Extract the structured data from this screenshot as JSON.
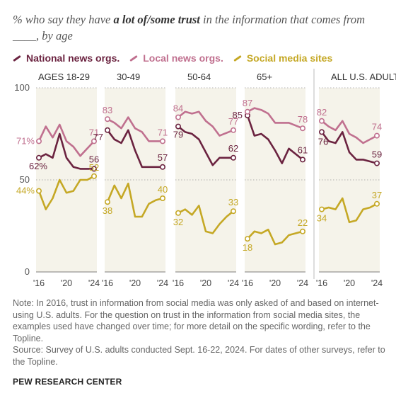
{
  "header": {
    "subtitle_pre": "% who say they have ",
    "subtitle_bold": "a lot of/some trust",
    "subtitle_post": " in the information that comes from ____, by age"
  },
  "colors": {
    "national": "#6b2340",
    "local": "#c0708f",
    "social": "#c5a825"
  },
  "chart_data": {
    "type": "line",
    "title": "",
    "ylim": [
      0,
      100
    ],
    "y_ticks": [
      "0",
      "50",
      "100"
    ],
    "x_ticks": [
      "'16",
      "'20",
      "'24"
    ],
    "x_range": [
      2016,
      2024
    ],
    "legend": [
      {
        "key": "national",
        "label": "National news orgs."
      },
      {
        "key": "local",
        "label": "Local news orgs."
      },
      {
        "key": "social",
        "label": "Social media sites"
      }
    ],
    "panels": [
      {
        "label": "AGES 18-29",
        "series": [
          {
            "key": "national",
            "x": [
              2016,
              2017,
              2018,
              2019,
              2020,
              2021,
              2022,
              2024
            ],
            "y": [
              62,
              64,
              62,
              75,
              62,
              57,
              56,
              56
            ],
            "start_label": "62%",
            "end_label": "56"
          },
          {
            "key": "local",
            "x": [
              2016,
              2017,
              2018,
              2019,
              2020,
              2021,
              2022,
              2024
            ],
            "y": [
              71,
              79,
              73,
              80,
              71,
              68,
              63,
              71
            ],
            "start_label": "71%",
            "end_label": "71"
          },
          {
            "key": "social",
            "x": [
              2016,
              2017,
              2018,
              2019,
              2020,
              2021,
              2022,
              2023,
              2024
            ],
            "y": [
              44,
              34,
              40,
              50,
              43,
              44,
              50,
              50,
              52
            ],
            "start_label": "44%",
            "end_label": "52"
          }
        ]
      },
      {
        "label": "30-49",
        "series": [
          {
            "key": "national",
            "x": [
              2016,
              2017,
              2018,
              2019,
              2020,
              2021,
              2022,
              2024
            ],
            "y": [
              77,
              72,
              70,
              77,
              66,
              57,
              57,
              57
            ],
            "start_label": "77",
            "end_label": "57"
          },
          {
            "key": "local",
            "x": [
              2016,
              2017,
              2018,
              2019,
              2020,
              2021,
              2022,
              2024
            ],
            "y": [
              83,
              81,
              78,
              84,
              78,
              76,
              71,
              71
            ],
            "start_label": "83",
            "end_label": "71"
          },
          {
            "key": "social",
            "x": [
              2016,
              2017,
              2018,
              2019,
              2020,
              2021,
              2022,
              2023,
              2024
            ],
            "y": [
              38,
              47,
              40,
              48,
              30,
              30,
              37,
              39,
              40
            ],
            "start_label": "38",
            "end_label": "40"
          }
        ]
      },
      {
        "label": "50-64",
        "series": [
          {
            "key": "national",
            "x": [
              2016,
              2017,
              2018,
              2019,
              2020,
              2021,
              2022,
              2024
            ],
            "y": [
              79,
              76,
              75,
              72,
              65,
              58,
              62,
              62
            ],
            "start_label": "79",
            "end_label": "62"
          },
          {
            "key": "local",
            "x": [
              2016,
              2017,
              2018,
              2019,
              2020,
              2021,
              2022,
              2024
            ],
            "y": [
              84,
              87,
              86,
              87,
              82,
              79,
              74,
              77
            ],
            "start_label": "84",
            "end_label": "77"
          },
          {
            "key": "social",
            "x": [
              2016,
              2017,
              2018,
              2019,
              2020,
              2021,
              2022,
              2023,
              2024
            ],
            "y": [
              32,
              34,
              31,
              36,
              22,
              21,
              26,
              30,
              33
            ],
            "start_label": "32",
            "end_label": "33"
          }
        ]
      },
      {
        "label": "65+",
        "series": [
          {
            "key": "national",
            "x": [
              2016,
              2017,
              2018,
              2019,
              2020,
              2021,
              2022,
              2024
            ],
            "y": [
              85,
              74,
              75,
              72,
              66,
              59,
              67,
              61
            ],
            "start_label": "85",
            "end_label": "61"
          },
          {
            "key": "local",
            "x": [
              2016,
              2017,
              2018,
              2019,
              2020,
              2021,
              2022,
              2024
            ],
            "y": [
              87,
              89,
              88,
              86,
              81,
              81,
              81,
              78
            ],
            "start_label": "87",
            "end_label": "78"
          },
          {
            "key": "social",
            "x": [
              2016,
              2017,
              2018,
              2019,
              2020,
              2021,
              2022,
              2023,
              2024
            ],
            "y": [
              18,
              22,
              21,
              23,
              15,
              16,
              20,
              21,
              22
            ],
            "start_label": "18",
            "end_label": "22"
          }
        ]
      },
      {
        "label": "ALL U.S. ADULTS",
        "series": [
          {
            "key": "national",
            "x": [
              2016,
              2017,
              2018,
              2019,
              2020,
              2021,
              2022,
              2024
            ],
            "y": [
              76,
              71,
              70,
              76,
              65,
              61,
              61,
              59
            ],
            "start_label": "76",
            "end_label": "59"
          },
          {
            "key": "local",
            "x": [
              2016,
              2017,
              2018,
              2019,
              2020,
              2021,
              2022,
              2024
            ],
            "y": [
              82,
              79,
              77,
              82,
              75,
              73,
              70,
              74
            ],
            "start_label": "82",
            "end_label": "74"
          },
          {
            "key": "social",
            "x": [
              2016,
              2017,
              2018,
              2019,
              2020,
              2021,
              2022,
              2023,
              2024
            ],
            "y": [
              34,
              35,
              34,
              40,
              27,
              28,
              34,
              35,
              37
            ],
            "start_label": "34",
            "end_label": "37"
          }
        ]
      }
    ]
  },
  "notes": {
    "note": "Note: In 2016, trust in information from social media was only asked of and based on internet-using U.S. adults. For the question on trust in the information from social media sites, the examples used have changed over time; for more detail on the specific wording, refer to the Topline.",
    "source": "Source: Survey of U.S. adults conducted Sept. 16-22, 2024. For dates of other surveys, refer to the Topline."
  },
  "brand": "PEW RESEARCH CENTER"
}
